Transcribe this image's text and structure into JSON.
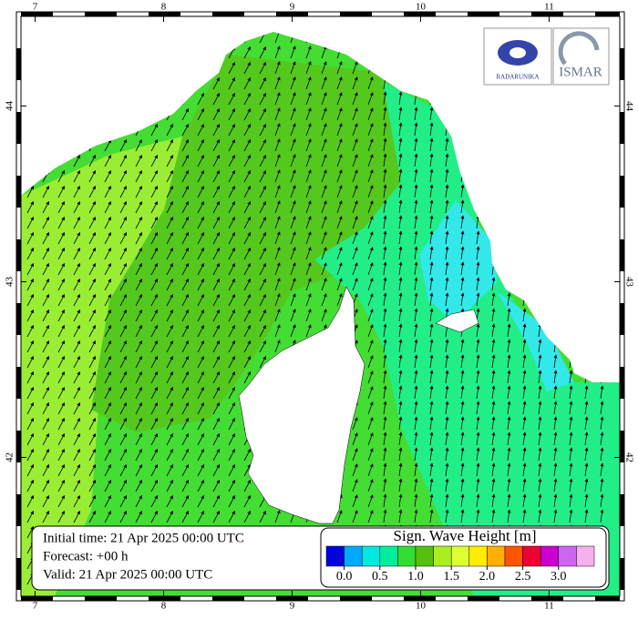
{
  "map": {
    "xlim": [
      6.89,
      11.55
    ],
    "ylim": [
      41.21,
      44.51
    ],
    "xticks": [
      7,
      8,
      9,
      10,
      11
    ],
    "yticks": [
      42,
      43,
      44
    ]
  },
  "info": {
    "initial_time": "Initial time: 21 Apr 2025 00:00 UTC",
    "forecast": "Forecast: +00 h",
    "valid": "Valid: 21 Apr 2025 00:00 UTC"
  },
  "legend": {
    "title": "Sign. Wave Height [m]",
    "colors": [
      "#0000dd",
      "#00aaff",
      "#00e8e0",
      "#00ee99",
      "#33dd33",
      "#55c010",
      "#aaee22",
      "#ddff33",
      "#ffee00",
      "#ffb000",
      "#ff5500",
      "#ee0033",
      "#cc00cc",
      "#cc66ee",
      "#f7b0ee"
    ],
    "ticks": [
      {
        "value": 0,
        "label": "0.0"
      },
      {
        "value": 0.5,
        "label": "0.5"
      },
      {
        "value": 1,
        "label": "1.0"
      },
      {
        "value": 1.5,
        "label": "1.5"
      },
      {
        "value": 2,
        "label": "2.0"
      },
      {
        "value": 2.5,
        "label": "2.5"
      },
      {
        "value": 3,
        "label": "3.0"
      }
    ]
  },
  "logos": {
    "left": "RADARUNIKA",
    "right": "ISMAR"
  }
}
